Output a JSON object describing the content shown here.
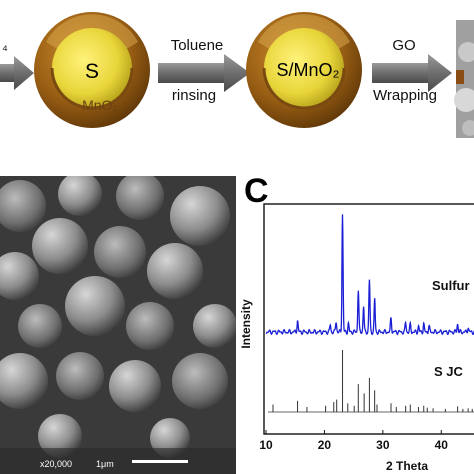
{
  "scheme": {
    "left_fragment": "₄",
    "sphere1": {
      "core": "S",
      "shell": "MnO₂"
    },
    "arrow1": {
      "line1": "Toluene",
      "line2": "rinsing"
    },
    "sphere2": {
      "core": "S/MnO₂"
    },
    "arrow2": {
      "line1": "GO",
      "line2": "Wrapping"
    }
  },
  "sem": {
    "magnification": "x20,000",
    "scalebar": "1μm"
  },
  "panel_c": {
    "letter": "C",
    "ylabel": "Intensity",
    "xlabel": "2 Theta",
    "legend_top": "Sulfur",
    "legend_bottom": "S JC"
  },
  "chart_data": {
    "type": "line",
    "xlabel": "2 Theta",
    "ylabel": "Intensity",
    "x_ticks": [
      10,
      20,
      30,
      40
    ],
    "xlim": [
      10,
      48
    ],
    "series": [
      {
        "name": "Sulfur",
        "color": "#1a1fd6",
        "baseline": 0.18,
        "peaks": [
          [
            15.4,
            0.1
          ],
          [
            21.0,
            0.06
          ],
          [
            22.0,
            0.09
          ],
          [
            23.1,
            1.0
          ],
          [
            24.1,
            0.07
          ],
          [
            25.8,
            0.36
          ],
          [
            26.7,
            0.22
          ],
          [
            27.7,
            0.44
          ],
          [
            28.6,
            0.28
          ],
          [
            31.4,
            0.12
          ],
          [
            33.9,
            0.08
          ],
          [
            34.7,
            0.06
          ],
          [
            36.1,
            0.05
          ],
          [
            37.0,
            0.07
          ],
          [
            37.9,
            0.05
          ],
          [
            42.8,
            0.07
          ],
          [
            44.6,
            0.04
          ],
          [
            46.0,
            0.05
          ],
          [
            47.8,
            0.04
          ]
        ]
      },
      {
        "name": "S JC",
        "color": "#333333",
        "peaks": [
          [
            11.2,
            0.12
          ],
          [
            15.4,
            0.18
          ],
          [
            17.0,
            0.08
          ],
          [
            20.2,
            0.1
          ],
          [
            21.6,
            0.16
          ],
          [
            22.1,
            0.2
          ],
          [
            23.1,
            1.0
          ],
          [
            24.0,
            0.14
          ],
          [
            25.1,
            0.1
          ],
          [
            25.8,
            0.45
          ],
          [
            26.8,
            0.3
          ],
          [
            27.7,
            0.55
          ],
          [
            28.6,
            0.35
          ],
          [
            29.0,
            0.12
          ],
          [
            31.4,
            0.14
          ],
          [
            32.3,
            0.08
          ],
          [
            33.9,
            0.1
          ],
          [
            34.7,
            0.12
          ],
          [
            36.1,
            0.08
          ],
          [
            37.0,
            0.1
          ],
          [
            37.6,
            0.07
          ],
          [
            38.6,
            0.06
          ],
          [
            40.7,
            0.05
          ],
          [
            42.8,
            0.09
          ],
          [
            43.7,
            0.05
          ],
          [
            44.6,
            0.06
          ],
          [
            45.3,
            0.05
          ],
          [
            46.0,
            0.08
          ],
          [
            47.1,
            0.06
          ]
        ]
      }
    ]
  }
}
